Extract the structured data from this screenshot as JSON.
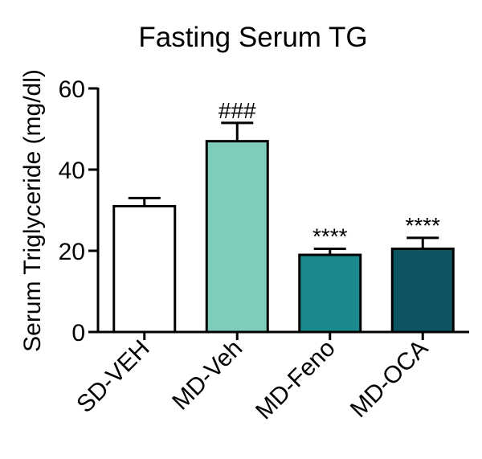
{
  "chart_data": {
    "type": "bar",
    "title": "Fasting Serum TG",
    "y_label": "Serum Triglyceride (mg/dl)",
    "categories": [
      "SD-VEH",
      "MD-Veh",
      "MD-Feno",
      "MD-OCA"
    ],
    "values": [
      31,
      47,
      19,
      20.5
    ],
    "errors": [
      2,
      4.5,
      1.5,
      2.7
    ],
    "colors": [
      "#ffffff",
      "#7ecdbb",
      "#1a8a8e",
      "#0e5563"
    ],
    "annotations": [
      null,
      "###",
      "****",
      "****"
    ],
    "ylim": [
      0,
      60
    ],
    "yticks": [
      0,
      20,
      40,
      60
    ]
  }
}
